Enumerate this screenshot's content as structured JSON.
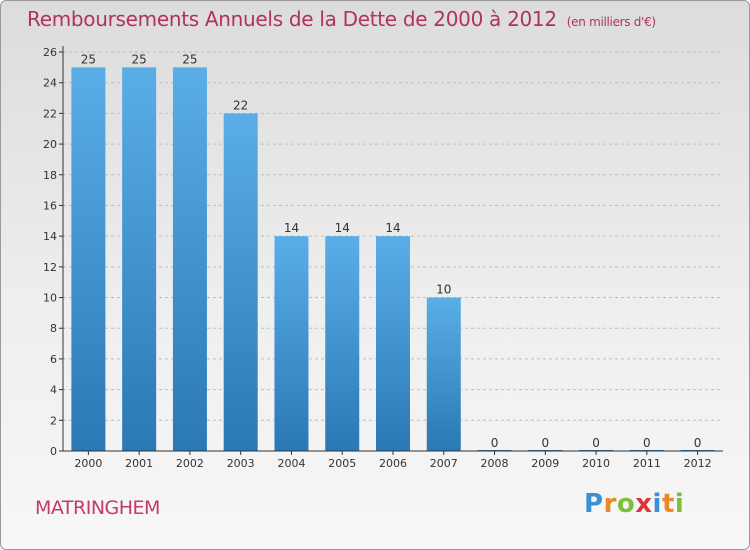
{
  "chart_data": {
    "type": "bar",
    "title": "Remboursements Annuels de la Dette de 2000 à 2012",
    "subtitle": "(en milliers d'€)",
    "categories": [
      "2000",
      "2001",
      "2002",
      "2003",
      "2004",
      "2005",
      "2006",
      "2007",
      "2008",
      "2009",
      "2010",
      "2011",
      "2012"
    ],
    "values": [
      25,
      25,
      25,
      22,
      14,
      14,
      14,
      10,
      0,
      0,
      0,
      0,
      0
    ],
    "ylim": [
      0,
      26
    ],
    "yticks": [
      0,
      2,
      4,
      6,
      8,
      10,
      12,
      14,
      16,
      18,
      20,
      22,
      24,
      26
    ],
    "grid": true,
    "bar_color_top": "#5aaee8",
    "bar_color_bottom": "#2a78b4"
  },
  "footer": {
    "commune": "MATRINGHEM",
    "logo_text": "Proxiti",
    "logo_colors": [
      "#3a8fd8",
      "#e8892a",
      "#7bbf3a",
      "#d83a3a",
      "#3a8fd8",
      "#e8892a",
      "#7bbf3a"
    ]
  },
  "colors": {
    "title": "#b0345a",
    "commune": "#c43a6c",
    "axis": "#333333",
    "grid": "#bdbdbd"
  }
}
